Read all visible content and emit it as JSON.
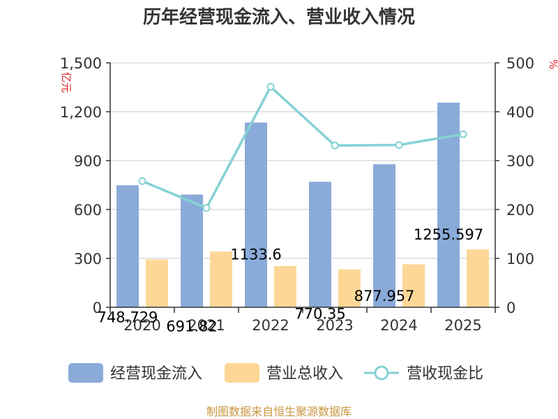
{
  "title": "历年经营现金流入、营业收入情况",
  "source": "制图数据来自恒生聚源数据库",
  "chart_data": {
    "type": "bar",
    "categories": [
      "2020",
      "2021",
      "2022",
      "2023",
      "2024",
      "2025"
    ],
    "y_left": {
      "unit": "亿元",
      "min": 0,
      "max": 1500,
      "ticks": [
        0,
        300,
        600,
        900,
        1200,
        1500
      ],
      "tick_labels": [
        "0",
        "300",
        "600",
        "900",
        "1,200",
        "1,500"
      ]
    },
    "y_right": {
      "unit": "%",
      "min": 0,
      "max": 500,
      "ticks": [
        0,
        100,
        200,
        300,
        400,
        500
      ],
      "tick_labels": [
        "0",
        "100",
        "200",
        "300",
        "400",
        "500"
      ]
    },
    "series": [
      {
        "name": "经营现金流入",
        "type": "bar",
        "axis": "left",
        "color": "#8aabd9",
        "values": [
          748.729,
          691.82,
          1133.6,
          770.35,
          877.957,
          1255.597
        ],
        "labels": [
          "748.729",
          "691.82",
          "1133.6",
          "770.35",
          "877.957",
          "1255.597"
        ]
      },
      {
        "name": "营业总收入",
        "type": "bar",
        "axis": "left",
        "color": "#fdd796",
        "values": [
          293,
          342,
          253,
          233,
          264,
          355
        ]
      },
      {
        "name": "营收现金比",
        "type": "line",
        "axis": "right",
        "color": "#85d1d4",
        "values": [
          258,
          203,
          451,
          331,
          332,
          354
        ]
      }
    ],
    "grid": true,
    "legend_position": "bottom"
  }
}
